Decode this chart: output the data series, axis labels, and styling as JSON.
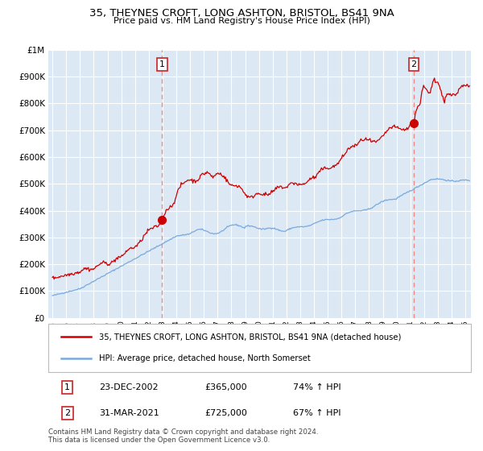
{
  "title": "35, THEYNES CROFT, LONG ASHTON, BRISTOL, BS41 9NA",
  "subtitle": "Price paid vs. HM Land Registry's House Price Index (HPI)",
  "legend_line1": "35, THEYNES CROFT, LONG ASHTON, BRISTOL, BS41 9NA (detached house)",
  "legend_line2": "HPI: Average price, detached house, North Somerset",
  "annotation1_date": "23-DEC-2002",
  "annotation1_price": "£365,000",
  "annotation1_hpi": "74% ↑ HPI",
  "annotation2_date": "31-MAR-2021",
  "annotation2_price": "£725,000",
  "annotation2_hpi": "67% ↑ HPI",
  "footer": "Contains HM Land Registry data © Crown copyright and database right 2024.\nThis data is licensed under the Open Government Licence v3.0.",
  "purchase1_year": 2002.97,
  "purchase1_price": 365000,
  "purchase2_year": 2021.25,
  "purchase2_price": 725000,
  "red_color": "#cc0000",
  "blue_color": "#7aaadd",
  "bg_color": "#dce9f5",
  "grid_color": "#ffffff",
  "vline_color": "#ee8888",
  "marker_color": "#cc0000",
  "box_edge_color": "#cc2222",
  "ylim_max": 1000000,
  "xlim_start": 1994.7,
  "xlim_end": 2025.4
}
